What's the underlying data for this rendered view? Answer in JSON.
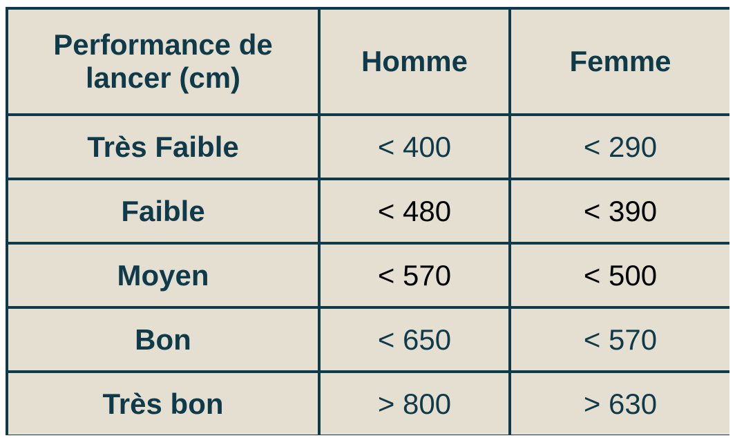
{
  "header": {
    "col1_line1": "Performance de",
    "col1_line2": "lancer (cm)",
    "col2": "Homme",
    "col3": "Femme"
  },
  "rows": [
    {
      "label": "Très Faible",
      "homme": "< 400",
      "femme": "< 290"
    },
    {
      "label": "Faible",
      "homme": "< 480",
      "femme": "< 390"
    },
    {
      "label": "Moyen",
      "homme": "< 570",
      "femme": "< 500"
    },
    {
      "label": "Bon",
      "homme": "< 650",
      "femme": "< 570"
    },
    {
      "label": "Très bon",
      "homme": "> 800",
      "femme": "> 630"
    }
  ]
}
